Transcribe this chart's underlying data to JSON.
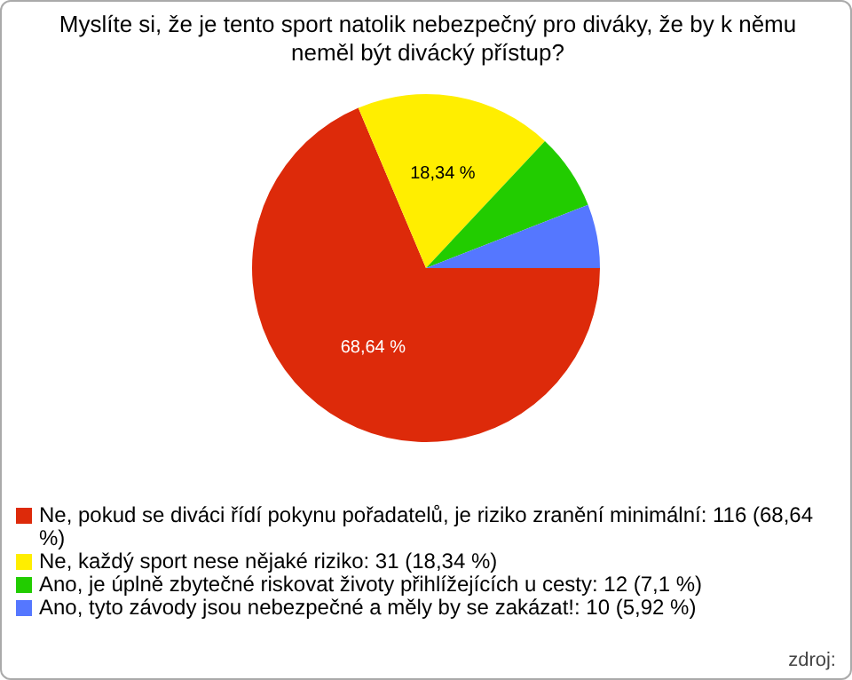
{
  "chart_data": {
    "type": "pie",
    "title": "Myslíte si, že je tento sport natolik nebezpečný pro diváky, že by k němu neměl být divácký přístup?",
    "categories": [
      "Ne, pokud se diváci řídí pokynu pořadatelů, je riziko zranění minimální: 116 (68,64 %)",
      "Ne, každý sport nese nějaké riziko: 31 (18,34 %)",
      "Ano, je úplně zbytečné riskovat životy přihlížejících u cesty: 12 (7,1 %)",
      "Ano, tyto závody jsou nebezpečné a měly by se zakázat!: 10 (5,92 %)"
    ],
    "values": [
      68.64,
      18.34,
      7.1,
      5.92
    ],
    "colors": [
      "#dd2a0a",
      "#ffee00",
      "#22cc00",
      "#5577ff"
    ],
    "value_labels": [
      "68,64 %",
      "18,34 %",
      null,
      null
    ],
    "annotations": [
      "zdroj:"
    ],
    "legend": "bottom"
  }
}
